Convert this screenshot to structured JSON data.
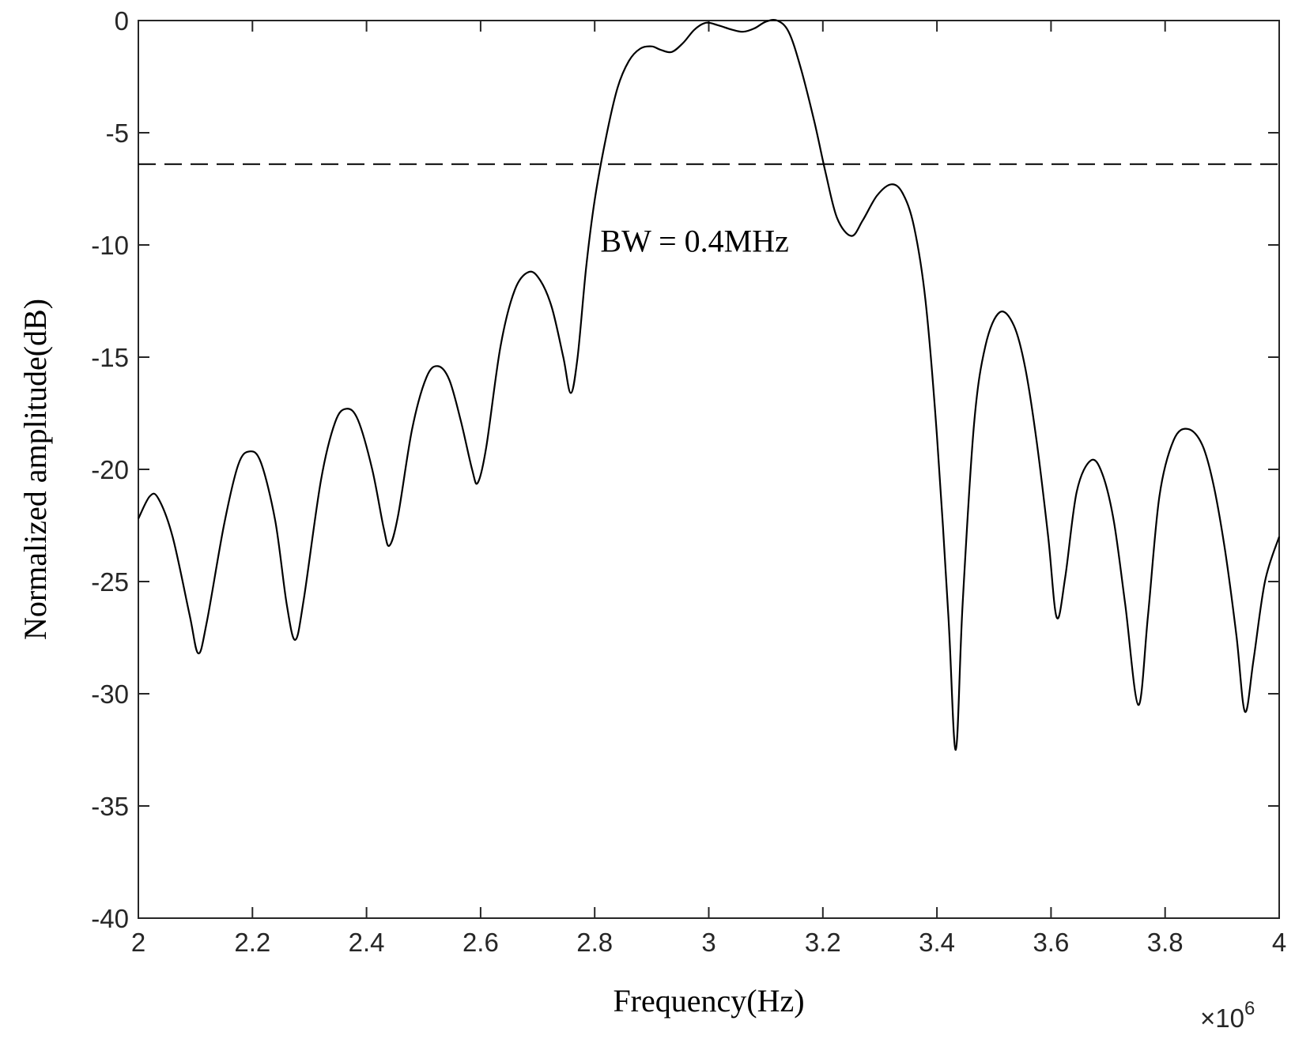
{
  "chart_data": {
    "type": "line",
    "title": "",
    "xlabel": "Frequency(Hz)",
    "ylabel": "Normalized amplitude(dB)",
    "x_multiplier_label": "×10",
    "x_multiplier_exponent": "6",
    "xlim": [
      2,
      4
    ],
    "ylim": [
      -40,
      0
    ],
    "xticks": [
      2,
      2.2,
      2.4,
      2.6,
      2.8,
      3,
      3.2,
      3.4,
      3.6,
      3.8,
      4
    ],
    "xtick_labels": [
      "2",
      "2.2",
      "2.4",
      "2.6",
      "2.8",
      "3",
      "3.2",
      "3.4",
      "3.6",
      "3.8",
      "4"
    ],
    "yticks": [
      0,
      -5,
      -10,
      -15,
      -20,
      -25,
      -30,
      -35,
      -40
    ],
    "ytick_labels": [
      "0",
      "-5",
      "-10",
      "-15",
      "-20",
      "-25",
      "-30",
      "-35",
      "-40"
    ],
    "grid": false,
    "legend": "none",
    "threshold_line": {
      "y": -6.4,
      "style": "dashed"
    },
    "annotation": {
      "text": "BW = 0.4MHz",
      "x": 2.81,
      "y": -10.3
    },
    "series": [
      {
        "color": "#000000",
        "points": [
          [
            2.0,
            -22.2
          ],
          [
            2.02,
            -21.2
          ],
          [
            2.035,
            -21.3
          ],
          [
            2.06,
            -23.0
          ],
          [
            2.09,
            -26.5
          ],
          [
            2.105,
            -28.2
          ],
          [
            2.12,
            -26.8
          ],
          [
            2.15,
            -22.5
          ],
          [
            2.175,
            -19.8
          ],
          [
            2.195,
            -19.2
          ],
          [
            2.215,
            -19.7
          ],
          [
            2.24,
            -22.3
          ],
          [
            2.26,
            -26.0
          ],
          [
            2.275,
            -27.6
          ],
          [
            2.29,
            -25.8
          ],
          [
            2.32,
            -20.5
          ],
          [
            2.345,
            -17.9
          ],
          [
            2.365,
            -17.3
          ],
          [
            2.385,
            -17.8
          ],
          [
            2.41,
            -20.0
          ],
          [
            2.43,
            -22.6
          ],
          [
            2.44,
            -23.4
          ],
          [
            2.455,
            -22.1
          ],
          [
            2.48,
            -18.2
          ],
          [
            2.505,
            -15.9
          ],
          [
            2.525,
            -15.4
          ],
          [
            2.545,
            -16.0
          ],
          [
            2.565,
            -17.8
          ],
          [
            2.585,
            -20.0
          ],
          [
            2.595,
            -20.6
          ],
          [
            2.61,
            -19.0
          ],
          [
            2.635,
            -14.5
          ],
          [
            2.66,
            -12.0
          ],
          [
            2.685,
            -11.2
          ],
          [
            2.705,
            -11.6
          ],
          [
            2.725,
            -12.8
          ],
          [
            2.745,
            -15.0
          ],
          [
            2.758,
            -16.6
          ],
          [
            2.77,
            -15.0
          ],
          [
            2.785,
            -11.0
          ],
          [
            2.8,
            -8.0
          ],
          [
            2.82,
            -5.2
          ],
          [
            2.84,
            -3.0
          ],
          [
            2.86,
            -1.8
          ],
          [
            2.88,
            -1.25
          ],
          [
            2.9,
            -1.15
          ],
          [
            2.915,
            -1.3
          ],
          [
            2.935,
            -1.4
          ],
          [
            2.955,
            -1.0
          ],
          [
            2.975,
            -0.4
          ],
          [
            2.995,
            -0.1
          ],
          [
            3.015,
            -0.2
          ],
          [
            3.04,
            -0.4
          ],
          [
            3.06,
            -0.5
          ],
          [
            3.08,
            -0.35
          ],
          [
            3.1,
            -0.05
          ],
          [
            3.12,
            0.0
          ],
          [
            3.14,
            -0.5
          ],
          [
            3.16,
            -2.0
          ],
          [
            3.185,
            -4.5
          ],
          [
            3.205,
            -6.8
          ],
          [
            3.225,
            -8.8
          ],
          [
            3.25,
            -9.6
          ],
          [
            3.27,
            -8.9
          ],
          [
            3.295,
            -7.8
          ],
          [
            3.32,
            -7.3
          ],
          [
            3.34,
            -7.7
          ],
          [
            3.36,
            -9.2
          ],
          [
            3.38,
            -12.5
          ],
          [
            3.4,
            -18.5
          ],
          [
            3.42,
            -26.5
          ],
          [
            3.433,
            -32.5
          ],
          [
            3.445,
            -26.0
          ],
          [
            3.465,
            -18.0
          ],
          [
            3.485,
            -14.5
          ],
          [
            3.51,
            -13.0
          ],
          [
            3.535,
            -13.6
          ],
          [
            3.555,
            -15.5
          ],
          [
            3.575,
            -18.8
          ],
          [
            3.595,
            -23.0
          ],
          [
            3.61,
            -26.6
          ],
          [
            3.625,
            -24.8
          ],
          [
            3.645,
            -21.0
          ],
          [
            3.67,
            -19.6
          ],
          [
            3.69,
            -20.2
          ],
          [
            3.71,
            -22.3
          ],
          [
            3.73,
            -26.0
          ],
          [
            3.753,
            -30.5
          ],
          [
            3.77,
            -26.5
          ],
          [
            3.79,
            -21.2
          ],
          [
            3.815,
            -18.7
          ],
          [
            3.84,
            -18.2
          ],
          [
            3.865,
            -18.9
          ],
          [
            3.885,
            -20.7
          ],
          [
            3.905,
            -23.6
          ],
          [
            3.925,
            -27.4
          ],
          [
            3.94,
            -30.8
          ],
          [
            3.955,
            -28.5
          ],
          [
            3.975,
            -25.0
          ],
          [
            4.0,
            -23.0
          ]
        ]
      }
    ]
  }
}
